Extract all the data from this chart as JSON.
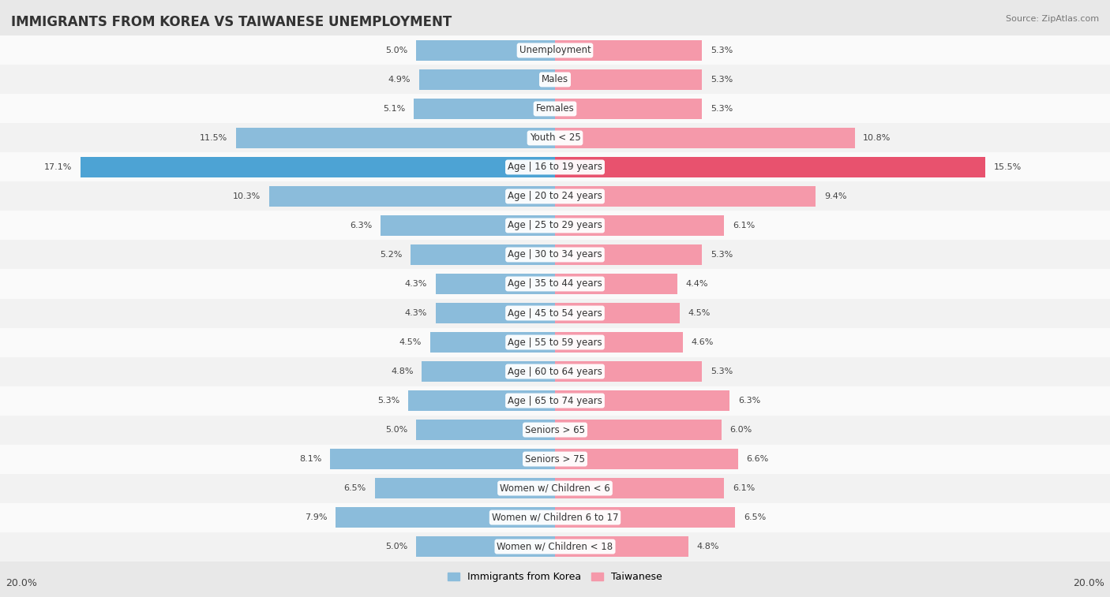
{
  "title": "IMMIGRANTS FROM KOREA VS TAIWANESE UNEMPLOYMENT",
  "source": "Source: ZipAtlas.com",
  "categories": [
    "Unemployment",
    "Males",
    "Females",
    "Youth < 25",
    "Age | 16 to 19 years",
    "Age | 20 to 24 years",
    "Age | 25 to 29 years",
    "Age | 30 to 34 years",
    "Age | 35 to 44 years",
    "Age | 45 to 54 years",
    "Age | 55 to 59 years",
    "Age | 60 to 64 years",
    "Age | 65 to 74 years",
    "Seniors > 65",
    "Seniors > 75",
    "Women w/ Children < 6",
    "Women w/ Children 6 to 17",
    "Women w/ Children < 18"
  ],
  "korea_values": [
    5.0,
    4.9,
    5.1,
    11.5,
    17.1,
    10.3,
    6.3,
    5.2,
    4.3,
    4.3,
    4.5,
    4.8,
    5.3,
    5.0,
    8.1,
    6.5,
    7.9,
    5.0
  ],
  "taiwan_values": [
    5.3,
    5.3,
    5.3,
    10.8,
    15.5,
    9.4,
    6.1,
    5.3,
    4.4,
    4.5,
    4.6,
    5.3,
    6.3,
    6.0,
    6.6,
    6.1,
    6.5,
    4.8
  ],
  "korea_color": "#8bbcdb",
  "taiwan_color": "#f599aa",
  "korea_highlight_color": "#4da3d4",
  "taiwan_highlight_color": "#e8526e",
  "bg_color": "#e8e8e8",
  "row_bg_even": "#f2f2f2",
  "row_bg_odd": "#fafafa",
  "axis_max": 20.0,
  "legend_korea": "Immigrants from Korea",
  "legend_taiwan": "Taiwanese",
  "label_fontsize": 8.5,
  "title_fontsize": 12,
  "value_fontsize": 8,
  "source_fontsize": 8
}
